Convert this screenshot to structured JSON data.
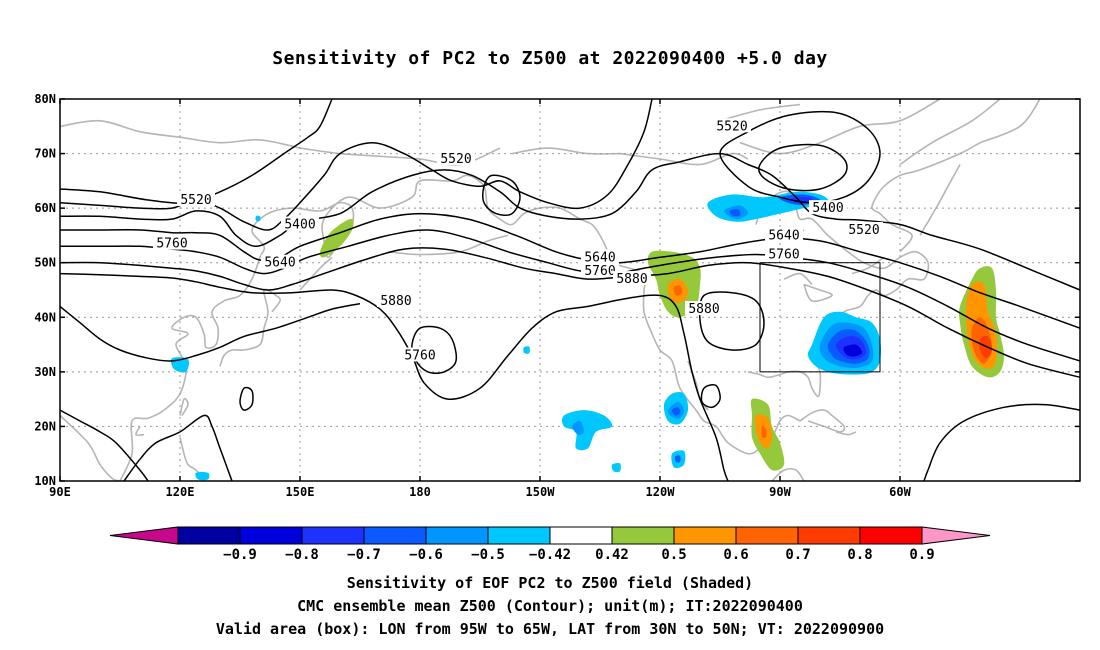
{
  "title": "Sensitivity of PC2 to Z500 at 2022090400 +5.0 day",
  "captions": [
    "Sensitivity of EOF PC2 to Z500 field (Shaded)",
    "CMC ensemble mean Z500 (Contour); unit(m); IT:2022090400",
    "Valid area (box): LON from 95W to 65W, LAT from 30N to 50N; VT: 2022090900"
  ],
  "chart_data": {
    "type": "heatmap",
    "map": {
      "lon_range": [
        90,
        345
      ],
      "lat_range": [
        10,
        80
      ],
      "lon_ticks": [
        {
          "lon": 90,
          "label": "90E"
        },
        {
          "lon": 120,
          "label": "120E"
        },
        {
          "lon": 150,
          "label": "150E"
        },
        {
          "lon": 180,
          "label": "180"
        },
        {
          "lon": 210,
          "label": "150W"
        },
        {
          "lon": 240,
          "label": "120W"
        },
        {
          "lon": 270,
          "label": "90W"
        },
        {
          "lon": 300,
          "label": "60W"
        }
      ],
      "lat_ticks": [
        {
          "lat": 80,
          "label": "80N"
        },
        {
          "lat": 70,
          "label": "70N"
        },
        {
          "lat": 60,
          "label": "60N"
        },
        {
          "lat": 50,
          "label": "50N"
        },
        {
          "lat": 40,
          "label": "40N"
        },
        {
          "lat": 30,
          "label": "30N"
        },
        {
          "lat": 20,
          "label": "20N"
        },
        {
          "lat": 10,
          "label": "10N"
        }
      ],
      "grid": true
    },
    "valid_box": {
      "lon": [
        265,
        295
      ],
      "lat": [
        30,
        50
      ]
    },
    "colorbar": {
      "labels": [
        "-0.9",
        "-0.8",
        "-0.7",
        "-0.6",
        "-0.5",
        "-0.42",
        "0.42",
        "0.5",
        "0.6",
        "0.7",
        "0.8",
        "0.9"
      ],
      "colors": [
        "#c8078c",
        "#0000a0",
        "#0000dc",
        "#1e32ff",
        "#0a5aff",
        "#0096ff",
        "#00c8ff",
        "#ffffff",
        "#96c83c",
        "#ff9600",
        "#ff6400",
        "#ff3c00",
        "#ff0000",
        "#ff96c8"
      ]
    },
    "contour_labels": [
      {
        "value": "5520",
        "lon": 124,
        "lat": 61.5
      },
      {
        "value": "5760",
        "lon": 118,
        "lat": 53.5
      },
      {
        "value": "5400",
        "lon": 150,
        "lat": 57
      },
      {
        "value": "5640",
        "lon": 145,
        "lat": 50
      },
      {
        "value": "5520",
        "lon": 189,
        "lat": 69
      },
      {
        "value": "5880",
        "lon": 174,
        "lat": 43
      },
      {
        "value": "5760",
        "lon": 180,
        "lat": 33
      },
      {
        "value": "5640",
        "lon": 225,
        "lat": 51
      },
      {
        "value": "5760",
        "lon": 225,
        "lat": 48.5
      },
      {
        "value": "5880",
        "lon": 233,
        "lat": 47
      },
      {
        "value": "5520",
        "lon": 258,
        "lat": 75
      },
      {
        "value": "5400",
        "lon": 282,
        "lat": 60
      },
      {
        "value": "5520",
        "lon": 291,
        "lat": 56
      },
      {
        "value": "5640",
        "lon": 271,
        "lat": 55
      },
      {
        "value": "5760",
        "lon": 271,
        "lat": 51.5
      },
      {
        "value": "5880",
        "lon": 251,
        "lat": 41.5
      }
    ],
    "shaded_regions": [
      {
        "level": "0.42",
        "sign": "positive",
        "lon": 160,
        "lat": 54.5
      },
      {
        "level": "0.5",
        "sign": "positive",
        "lon": 245,
        "lat": 46
      },
      {
        "level": "0.7",
        "sign": "positive",
        "lon": 323,
        "lat": 34.5
      },
      {
        "level": "0.5",
        "sign": "positive",
        "lon": 267,
        "lat": 18
      },
      {
        "level": "-0.8",
        "sign": "negative",
        "lon": 290,
        "lat": 33
      },
      {
        "level": "-0.5",
        "sign": "negative",
        "lon": 262,
        "lat": 60
      },
      {
        "level": "-0.7",
        "sign": "negative",
        "lon": 274,
        "lat": 62
      },
      {
        "level": "-0.5",
        "sign": "negative",
        "lon": 224,
        "lat": 20
      },
      {
        "level": "-0.6",
        "sign": "negative",
        "lon": 244,
        "lat": 22
      }
    ]
  }
}
